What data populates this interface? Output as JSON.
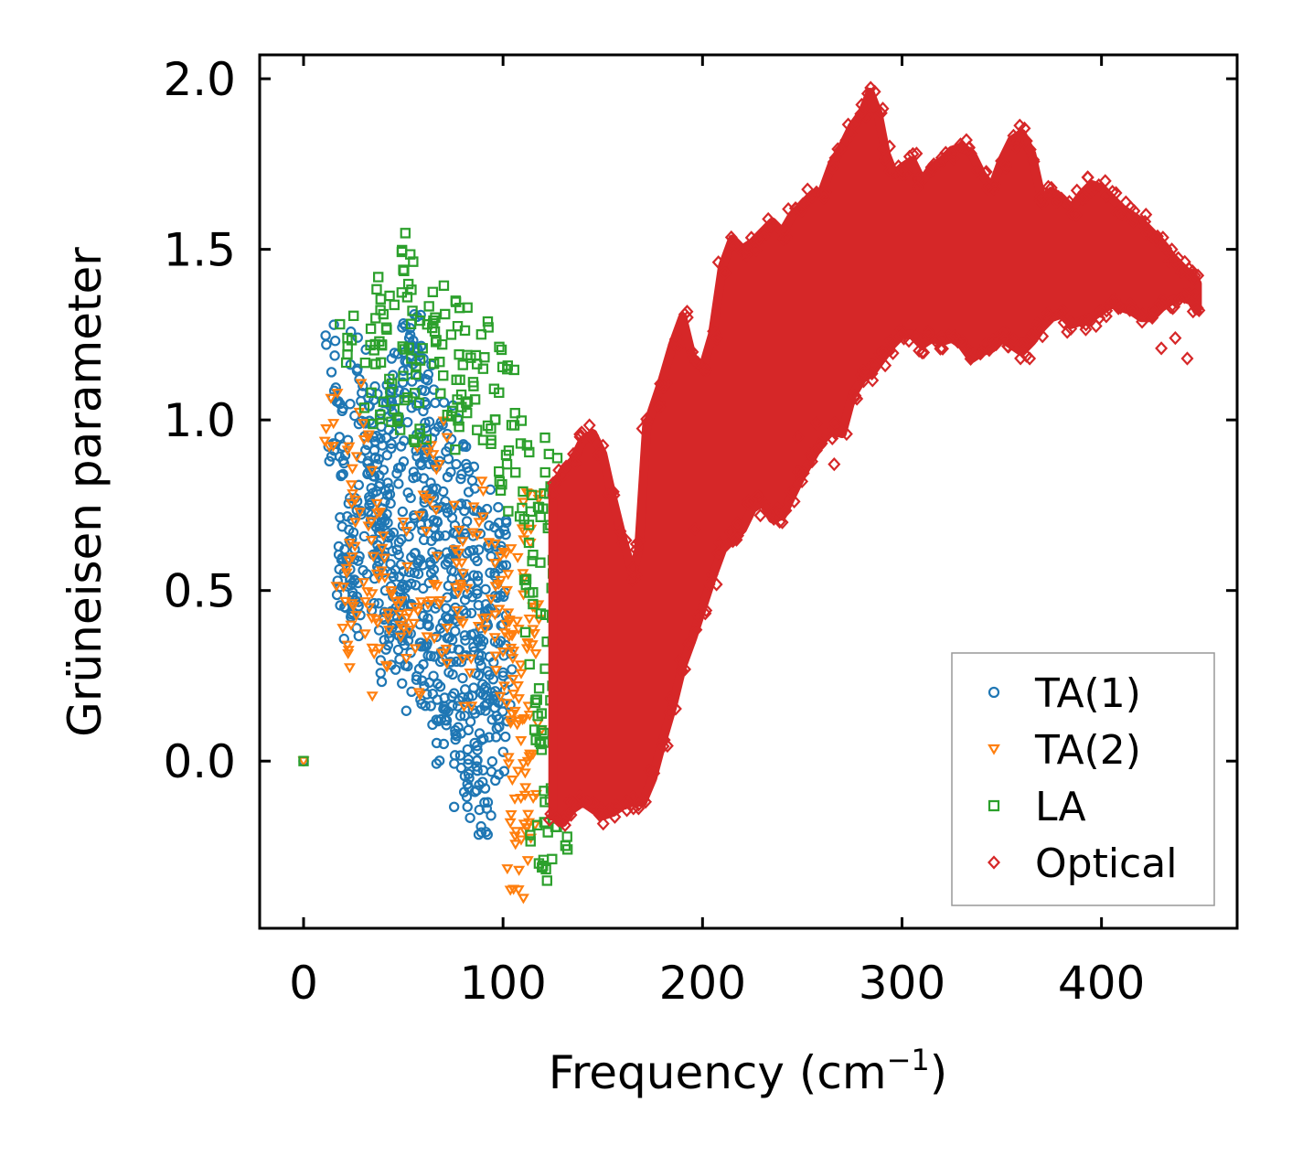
{
  "chart_data": {
    "type": "scatter",
    "title": "",
    "xlabel": "Frequency (cm",
    "xlabel_sup": "−1",
    "xlabel_close": ")",
    "ylabel": "Grüneisen parameter",
    "xlim": [
      -22,
      468
    ],
    "ylim": [
      -0.49,
      2.07
    ],
    "x_ticks": [
      0,
      100,
      200,
      300,
      400
    ],
    "x_tick_labels": [
      "0",
      "100",
      "200",
      "300",
      "400"
    ],
    "y_ticks": [
      0.0,
      0.5,
      1.0,
      1.5,
      2.0
    ],
    "y_tick_labels": [
      "0.0",
      "0.5",
      "1.0",
      "1.5",
      "2.0"
    ],
    "grid": false,
    "legend_position": "bottom-right",
    "series": [
      {
        "name": "TA(1)",
        "marker": "circle",
        "color": "#1f77b4",
        "points": [
          [
            0,
            0.0
          ],
          [
            14,
            1.14
          ],
          [
            16,
            0.93
          ],
          [
            18,
            0.95
          ],
          [
            19,
            0.59
          ],
          [
            22,
            0.59
          ],
          [
            24,
            0.43
          ],
          [
            25,
            0.67
          ],
          [
            26,
            0.47
          ],
          [
            27,
            1.15
          ],
          [
            28,
            0.6
          ],
          [
            31,
            0.99
          ],
          [
            33,
            0.75
          ],
          [
            34,
            0.8
          ],
          [
            35,
            0.95
          ],
          [
            36,
            0.89
          ],
          [
            37,
            0.57
          ],
          [
            38,
            0.62
          ],
          [
            39,
            0.7
          ],
          [
            40,
            1.05
          ],
          [
            41,
            0.5
          ],
          [
            42,
            0.78
          ],
          [
            43,
            0.36
          ],
          [
            44,
            0.93
          ],
          [
            45,
            1.09
          ],
          [
            46,
            0.56
          ],
          [
            47,
            0.42
          ],
          [
            48,
            0.99
          ],
          [
            49,
            0.65
          ],
          [
            50,
            0.37
          ],
          [
            51,
            0.28
          ],
          [
            52,
            1.17
          ],
          [
            53,
            1.24
          ],
          [
            54,
            0.46
          ],
          [
            55,
            0.83
          ],
          [
            56,
            0.61
          ],
          [
            57,
            1.21
          ],
          [
            58,
            0.27
          ],
          [
            59,
            0.95
          ],
          [
            60,
            0.72
          ],
          [
            61,
            1.12
          ],
          [
            62,
            0.4
          ],
          [
            63,
            0.23
          ],
          [
            64,
            0.55
          ],
          [
            65,
            0.88
          ],
          [
            66,
            1.05
          ],
          [
            67,
            0.18
          ],
          [
            68,
            0.66
          ],
          [
            69,
            0.32
          ],
          [
            70,
            0.79
          ],
          [
            71,
            0.12
          ],
          [
            72,
            0.48
          ],
          [
            73,
            0.92
          ],
          [
            74,
            0.29
          ],
          [
            75,
            0.62
          ],
          [
            76,
            0.09
          ],
          [
            77,
            0.41
          ],
          [
            78,
            0.75
          ],
          [
            79,
            -0.02
          ],
          [
            80,
            0.55
          ],
          [
            81,
            0.21
          ],
          [
            82,
            0.86
          ],
          [
            83,
            -0.05
          ],
          [
            84,
            0.37
          ],
          [
            85,
            0.66
          ],
          [
            86,
            0.14
          ],
          [
            87,
            0.5
          ],
          [
            88,
            -0.07
          ],
          [
            89,
            0.28
          ],
          [
            90,
            0.72
          ],
          [
            91,
            -0.08
          ],
          [
            92,
            0.44
          ],
          [
            93,
            0.07
          ],
          [
            94,
            0.6
          ],
          [
            95,
            0.18
          ],
          [
            96,
            0.35
          ],
          [
            97,
            0.52
          ],
          [
            98,
            0.1
          ],
          [
            99,
            0.63
          ],
          [
            100,
            0.25
          ]
        ]
      },
      {
        "name": "TA(2)",
        "marker": "triangle-down",
        "color": "#ff7f0e",
        "points": [
          [
            0,
            0.0
          ],
          [
            15,
            0.99
          ],
          [
            20,
            0.51
          ],
          [
            22,
            0.34
          ],
          [
            24,
            0.81
          ],
          [
            26,
            0.7
          ],
          [
            30,
            0.99
          ],
          [
            33,
            0.45
          ],
          [
            35,
            0.6
          ],
          [
            38,
            0.33
          ],
          [
            40,
            0.66
          ],
          [
            44,
            0.49
          ],
          [
            48,
            0.43
          ],
          [
            52,
            0.57
          ],
          [
            56,
            0.33
          ],
          [
            60,
            0.78
          ],
          [
            64,
            0.47
          ],
          [
            68,
            0.87
          ],
          [
            72,
            0.39
          ],
          [
            76,
            0.62
          ],
          [
            80,
            0.55
          ],
          [
            84,
            0.3
          ],
          [
            88,
            0.7
          ],
          [
            92,
            0.42
          ],
          [
            96,
            0.58
          ],
          [
            100,
            0.32
          ],
          [
            102,
            0.5
          ],
          [
            104,
            0.12
          ],
          [
            105,
            0.24
          ],
          [
            106,
            -0.22
          ],
          [
            107,
            0.41
          ],
          [
            108,
            -0.32
          ],
          [
            109,
            0.06
          ],
          [
            110,
            0.55
          ],
          [
            111,
            -0.1
          ],
          [
            112,
            0.33
          ],
          [
            113,
            -0.18
          ],
          [
            114,
            0.68
          ],
          [
            115,
            0.02
          ],
          [
            116,
            0.45
          ]
        ]
      },
      {
        "name": "LA",
        "marker": "square",
        "color": "#2ca02c",
        "points": [
          [
            0,
            0.0
          ],
          [
            22,
            1.24
          ],
          [
            34,
            1.08
          ],
          [
            38,
            1.23
          ],
          [
            40,
            1.31
          ],
          [
            43,
            1.12
          ],
          [
            47,
            1.0
          ],
          [
            50,
            1.44
          ],
          [
            52,
            1.36
          ],
          [
            54,
            1.18
          ],
          [
            58,
            1.05
          ],
          [
            62,
            1.28
          ],
          [
            66,
            1.3
          ],
          [
            70,
            1.13
          ],
          [
            74,
            1.25
          ],
          [
            78,
            0.98
          ],
          [
            82,
            1.19
          ],
          [
            86,
            1.06
          ],
          [
            90,
            1.15
          ],
          [
            94,
            0.93
          ],
          [
            98,
            1.08
          ],
          [
            102,
            0.87
          ],
          [
            106,
            1.02
          ],
          [
            110,
            0.79
          ],
          [
            113,
            0.64
          ],
          [
            115,
            0.46
          ],
          [
            117,
            0.18
          ],
          [
            118,
            -0.3
          ],
          [
            119,
            0.05
          ],
          [
            120,
            0.74
          ],
          [
            121,
            -0.18
          ],
          [
            122,
            0.35
          ],
          [
            123,
            0.9
          ],
          [
            124,
            -0.08
          ],
          [
            125,
            0.55
          ],
          [
            126,
            0.22
          ],
          [
            127,
            0.7
          ],
          [
            128,
            -0.12
          ],
          [
            130,
            0.42
          ],
          [
            132,
            0.3
          ]
        ]
      },
      {
        "name": "Optical",
        "marker": "diamond",
        "color": "#d62728",
        "upper": [
          [
            125,
            0.8
          ],
          [
            130,
            0.85
          ],
          [
            135,
            0.88
          ],
          [
            140,
            0.94
          ],
          [
            145,
            0.96
          ],
          [
            150,
            0.9
          ],
          [
            155,
            0.77
          ],
          [
            160,
            0.65
          ],
          [
            165,
            0.55
          ],
          [
            168,
            0.62
          ],
          [
            172,
            0.98
          ],
          [
            176,
            1.05
          ],
          [
            180,
            1.12
          ],
          [
            185,
            1.22
          ],
          [
            190,
            1.3
          ],
          [
            195,
            1.18
          ],
          [
            200,
            1.15
          ],
          [
            205,
            1.25
          ],
          [
            210,
            1.45
          ],
          [
            215,
            1.53
          ],
          [
            220,
            1.5
          ],
          [
            225,
            1.52
          ],
          [
            230,
            1.55
          ],
          [
            235,
            1.58
          ],
          [
            240,
            1.55
          ],
          [
            245,
            1.6
          ],
          [
            250,
            1.63
          ],
          [
            255,
            1.66
          ],
          [
            260,
            1.67
          ],
          [
            265,
            1.75
          ],
          [
            270,
            1.8
          ],
          [
            275,
            1.86
          ],
          [
            280,
            1.9
          ],
          [
            284,
            1.96
          ],
          [
            288,
            1.9
          ],
          [
            292,
            1.78
          ],
          [
            296,
            1.72
          ],
          [
            300,
            1.74
          ],
          [
            305,
            1.76
          ],
          [
            310,
            1.7
          ],
          [
            315,
            1.74
          ],
          [
            320,
            1.76
          ],
          [
            325,
            1.79
          ],
          [
            330,
            1.8
          ],
          [
            335,
            1.78
          ],
          [
            340,
            1.72
          ],
          [
            345,
            1.68
          ],
          [
            350,
            1.76
          ],
          [
            355,
            1.82
          ],
          [
            360,
            1.84
          ],
          [
            365,
            1.78
          ],
          [
            370,
            1.65
          ],
          [
            375,
            1.67
          ],
          [
            380,
            1.65
          ],
          [
            385,
            1.62
          ],
          [
            390,
            1.66
          ],
          [
            395,
            1.69
          ],
          [
            400,
            1.68
          ],
          [
            405,
            1.65
          ],
          [
            410,
            1.62
          ],
          [
            415,
            1.6
          ],
          [
            420,
            1.58
          ],
          [
            425,
            1.55
          ],
          [
            430,
            1.52
          ],
          [
            435,
            1.48
          ],
          [
            440,
            1.45
          ],
          [
            445,
            1.42
          ],
          [
            448,
            1.4
          ]
        ],
        "lower": [
          [
            448,
            1.32
          ],
          [
            445,
            1.35
          ],
          [
            440,
            1.36
          ],
          [
            435,
            1.35
          ],
          [
            430,
            1.33
          ],
          [
            425,
            1.3
          ],
          [
            420,
            1.3
          ],
          [
            415,
            1.32
          ],
          [
            410,
            1.33
          ],
          [
            405,
            1.34
          ],
          [
            400,
            1.32
          ],
          [
            395,
            1.3
          ],
          [
            390,
            1.29
          ],
          [
            385,
            1.28
          ],
          [
            380,
            1.31
          ],
          [
            375,
            1.3
          ],
          [
            370,
            1.27
          ],
          [
            365,
            1.23
          ],
          [
            360,
            1.2
          ],
          [
            355,
            1.22
          ],
          [
            350,
            1.24
          ],
          [
            345,
            1.21
          ],
          [
            340,
            1.2
          ],
          [
            335,
            1.18
          ],
          [
            330,
            1.22
          ],
          [
            325,
            1.24
          ],
          [
            320,
            1.23
          ],
          [
            315,
            1.24
          ],
          [
            310,
            1.22
          ],
          [
            305,
            1.25
          ],
          [
            300,
            1.25
          ],
          [
            295,
            1.22
          ],
          [
            290,
            1.18
          ],
          [
            285,
            1.14
          ],
          [
            280,
            1.12
          ],
          [
            275,
            1.07
          ],
          [
            270,
            0.96
          ],
          [
            265,
            0.97
          ],
          [
            260,
            0.94
          ],
          [
            255,
            0.89
          ],
          [
            250,
            0.84
          ],
          [
            245,
            0.78
          ],
          [
            240,
            0.72
          ],
          [
            235,
            0.71
          ],
          [
            230,
            0.76
          ],
          [
            225,
            0.74
          ],
          [
            220,
            0.68
          ],
          [
            215,
            0.65
          ],
          [
            210,
            0.62
          ],
          [
            205,
            0.54
          ],
          [
            200,
            0.45
          ],
          [
            195,
            0.36
          ],
          [
            190,
            0.28
          ],
          [
            185,
            0.16
          ],
          [
            180,
            0.06
          ],
          [
            175,
            -0.05
          ],
          [
            170,
            -0.12
          ],
          [
            165,
            -0.12
          ],
          [
            160,
            -0.13
          ],
          [
            155,
            -0.15
          ],
          [
            150,
            -0.16
          ],
          [
            145,
            -0.14
          ],
          [
            140,
            -0.12
          ],
          [
            135,
            -0.14
          ],
          [
            130,
            -0.18
          ],
          [
            125,
            -0.16
          ]
        ],
        "outliers": [
          [
            266,
            0.87
          ],
          [
            257,
            0.99
          ],
          [
            248,
            0.95
          ],
          [
            240,
            0.7
          ],
          [
            229,
            0.72
          ],
          [
            196,
            0.68
          ],
          [
            443,
            1.18
          ],
          [
            437,
            1.24
          ],
          [
            430,
            1.21
          ],
          [
            364,
            1.18
          ]
        ]
      }
    ]
  }
}
